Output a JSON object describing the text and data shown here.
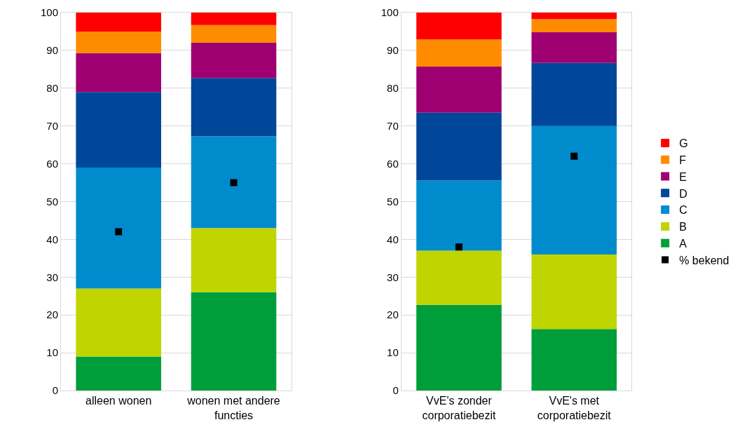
{
  "chart_data": [
    {
      "type": "bar",
      "stacked": true,
      "categories": [
        "alleen wonen",
        "wonen met andere functies"
      ],
      "ylim": [
        0,
        100
      ],
      "yticks": [
        0,
        10,
        20,
        30,
        40,
        50,
        60,
        70,
        80,
        90,
        100
      ],
      "grid": "y",
      "series": [
        {
          "color": "#009e3b",
          "values": [
            9,
            26
          ]
        },
        {
          "color": "#c0d400",
          "values": [
            18,
            17
          ]
        },
        {
          "color": "#008ccc",
          "values": [
            32,
            24.3
          ]
        },
        {
          "color": "#00479a",
          "values": [
            20,
            15.4
          ]
        },
        {
          "color": "#9e0072",
          "values": [
            10.3,
            9.3
          ]
        },
        {
          "color": "#ff8c00",
          "values": [
            5.7,
            4.7
          ]
        },
        {
          "color": "#ff0000",
          "values": [
            5,
            3.3
          ]
        },
        {
          "type": "scatter",
          "marker": "square",
          "color": "#000000",
          "values": [
            42,
            55
          ]
        }
      ]
    },
    {
      "type": "bar",
      "stacked": true,
      "categories": [
        "VvE's zonder corporatiebezit",
        "VvE's met corporatiebezit"
      ],
      "ylim": [
        0,
        100
      ],
      "yticks": [
        0,
        10,
        20,
        30,
        40,
        50,
        60,
        70,
        80,
        90,
        100
      ],
      "grid": "y",
      "legend": "right",
      "series": [
        {
          "name": "A",
          "color": "#009e3b",
          "values": [
            22.7,
            16.3
          ]
        },
        {
          "name": "B",
          "color": "#c0d400",
          "values": [
            14.3,
            19.7
          ]
        },
        {
          "name": "C",
          "color": "#008ccc",
          "values": [
            18.6,
            34
          ]
        },
        {
          "name": "D",
          "color": "#00479a",
          "values": [
            17.9,
            16.7
          ]
        },
        {
          "name": "E",
          "color": "#9e0072",
          "values": [
            12.2,
            8.1
          ]
        },
        {
          "name": "F",
          "color": "#ff8c00",
          "values": [
            7.2,
            3.5
          ]
        },
        {
          "name": "G",
          "color": "#ff0000",
          "values": [
            7.1,
            1.7
          ]
        },
        {
          "name": "% bekend",
          "type": "scatter",
          "marker": "square",
          "color": "#000000",
          "values": [
            38,
            62
          ]
        }
      ]
    }
  ]
}
